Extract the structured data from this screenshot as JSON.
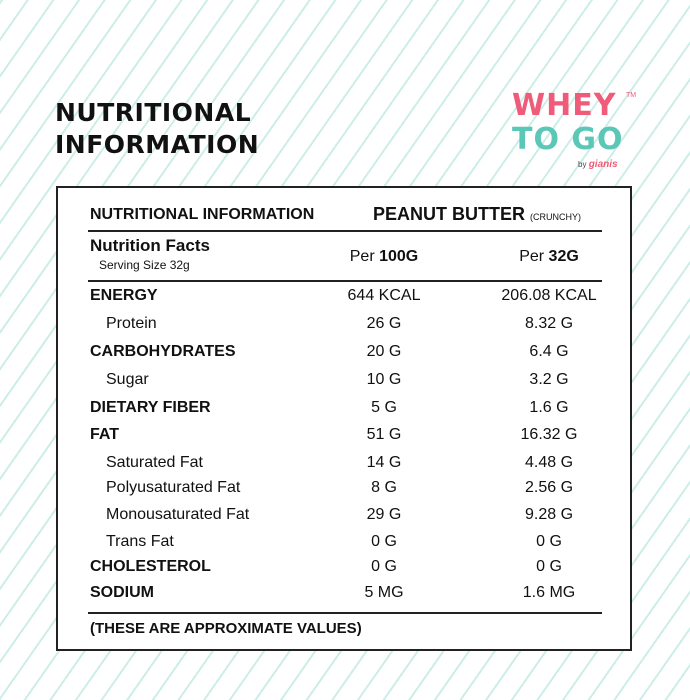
{
  "heading": {
    "line1": "NUTRITIONAL",
    "line2": "INFORMATION"
  },
  "logo": {
    "line1": "WHEY",
    "line2": "TO GO",
    "tm": "TM",
    "by": "by",
    "brand": "gianis"
  },
  "table": {
    "title_left": "NUTRITIONAL INFORMATION",
    "product": "PEANUT BUTTER",
    "variant": "(CRUNCHY)",
    "facts_title": "Nutrition Facts",
    "serving_size": "Serving Size 32g",
    "col1_prefix": "Per",
    "col1_unit": "100G",
    "col2_prefix": "Per",
    "col2_unit": "32G",
    "rows": [
      {
        "label": "ENERGY",
        "v1": "644 KCAL",
        "v2": "206.08 KCAL"
      },
      {
        "label": "Protein",
        "v1": "26 G",
        "v2": "8.32 G"
      },
      {
        "label": "CARBOHYDRATES",
        "v1": "20 G",
        "v2": "6.4 G"
      },
      {
        "label": "Sugar",
        "v1": "10 G",
        "v2": "3.2 G"
      },
      {
        "label": "DIETARY FIBER",
        "v1": "5 G",
        "v2": "1.6 G"
      },
      {
        "label": "FAT",
        "v1": "51 G",
        "v2": "16.32 G"
      },
      {
        "label": "Saturated Fat",
        "v1": "14 G",
        "v2": "4.48 G"
      },
      {
        "label": "Polyusaturated Fat",
        "v1": "8 G",
        "v2": "2.56 G"
      },
      {
        "label": "Monousaturated Fat",
        "v1": "29 G",
        "v2": "9.28 G"
      },
      {
        "label": "Trans Fat",
        "v1": "0 G",
        "v2": "0 G"
      },
      {
        "label": "CHOLESTEROL",
        "v1": "0 G",
        "v2": "0 G"
      },
      {
        "label": "SODIUM",
        "v1": "5 MG",
        "v2": "1.6 MG"
      }
    ],
    "footnote": "(THESE ARE APPROXIMATE VALUES)"
  }
}
